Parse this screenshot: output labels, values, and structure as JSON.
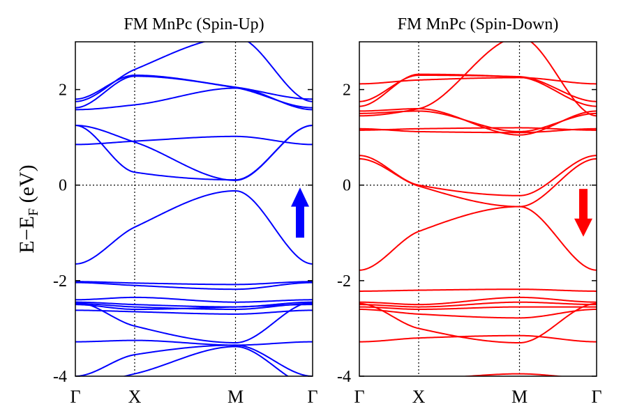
{
  "chart_data": [
    {
      "type": "line",
      "title": "FM MnPc (Spin-Up)",
      "ylabel": "E−E",
      "ylabel_sub": "F",
      "ylabel_unit": "(eV)",
      "ylim": [
        -4,
        3
      ],
      "yticks": [
        -4,
        -2,
        0,
        2
      ],
      "ytick_labels": [
        "-4",
        "-2",
        "0",
        "2"
      ],
      "x_kpoints": [
        0,
        1,
        2.7,
        4
      ],
      "x_labels": [
        "Γ",
        "X",
        "M",
        "Γ"
      ],
      "grid": "dotted lines at X, M and E=0",
      "color": "#0000ff",
      "arrow": "up",
      "series": [
        {
          "x": [
            0,
            1,
            2.7,
            4
          ],
          "y": [
            -1.65,
            -0.88,
            -0.12,
            -1.65
          ]
        },
        {
          "x": [
            0,
            1,
            2.7,
            4
          ],
          "y": [
            0.85,
            0.92,
            1.02,
            0.85
          ]
        },
        {
          "x": [
            0,
            1,
            2.7,
            4
          ],
          "y": [
            1.25,
            0.9,
            0.1,
            1.25
          ]
        },
        {
          "x": [
            0,
            1,
            2.7,
            4
          ],
          "y": [
            1.25,
            0.27,
            0.11,
            1.25
          ]
        },
        {
          "x": [
            0,
            1,
            2.7,
            4
          ],
          "y": [
            1.58,
            1.68,
            2.03,
            1.58
          ]
        },
        {
          "x": [
            0,
            1,
            2.7,
            4
          ],
          "y": [
            1.62,
            2.28,
            2.04,
            1.62
          ]
        },
        {
          "x": [
            0,
            1,
            2.7,
            4
          ],
          "y": [
            1.75,
            2.42,
            3.1,
            1.75
          ]
        },
        {
          "x": [
            0,
            1,
            2.7,
            4
          ],
          "y": [
            1.8,
            2.3,
            2.05,
            1.8
          ]
        },
        {
          "x": [
            0,
            1,
            2.7,
            4
          ],
          "y": [
            -2.02,
            -2.05,
            -2.08,
            -2.02
          ]
        },
        {
          "x": [
            0,
            1,
            2.7,
            4
          ],
          "y": [
            -2.04,
            -2.1,
            -2.18,
            -2.04
          ]
        },
        {
          "x": [
            0,
            1,
            2.7,
            4
          ],
          "y": [
            -2.4,
            -2.35,
            -2.45,
            -2.4
          ]
        },
        {
          "x": [
            0,
            1,
            2.7,
            4
          ],
          "y": [
            -2.45,
            -2.5,
            -2.55,
            -2.45
          ]
        },
        {
          "x": [
            0,
            1,
            2.7,
            4
          ],
          "y": [
            -2.48,
            -2.55,
            -2.6,
            -2.48
          ]
        },
        {
          "x": [
            0,
            1,
            2.7,
            4
          ],
          "y": [
            -2.5,
            -2.6,
            -2.55,
            -2.5
          ]
        },
        {
          "x": [
            0,
            1,
            2.7,
            4
          ],
          "y": [
            -2.62,
            -2.65,
            -2.7,
            -2.62
          ]
        },
        {
          "x": [
            0,
            1,
            2.7,
            4
          ],
          "y": [
            -2.45,
            -2.95,
            -3.3,
            -2.45
          ]
        },
        {
          "x": [
            0,
            1,
            2.7,
            4
          ],
          "y": [
            -3.28,
            -3.25,
            -3.35,
            -3.28
          ]
        },
        {
          "x": [
            0,
            1,
            2.7,
            4
          ],
          "y": [
            -4.0,
            -3.55,
            -3.35,
            -4.0
          ]
        },
        {
          "x": [
            0,
            1,
            2.7,
            4
          ],
          "y": [
            -4.2,
            -3.95,
            -3.38,
            -4.2
          ]
        }
      ]
    },
    {
      "type": "line",
      "title": "FM MnPc (Spin-Down)",
      "ylim": [
        -4,
        3
      ],
      "yticks": [
        -4,
        -2,
        0,
        2
      ],
      "ytick_labels": [
        "-4",
        "-2",
        "0",
        "2"
      ],
      "x_kpoints": [
        0,
        1,
        2.7,
        4
      ],
      "x_labels": [
        "Γ",
        "X",
        "M",
        "Γ"
      ],
      "grid": "dotted lines at X, M and E=0",
      "color": "#ff0000",
      "arrow": "down",
      "series": [
        {
          "x": [
            0,
            1,
            2.7,
            4
          ],
          "y": [
            -1.78,
            -0.97,
            -0.45,
            -1.78
          ]
        },
        {
          "x": [
            0,
            1,
            2.7,
            4
          ],
          "y": [
            0.55,
            -0.02,
            -0.45,
            0.55
          ]
        },
        {
          "x": [
            0,
            1,
            2.7,
            4
          ],
          "y": [
            0.62,
            0.0,
            -0.22,
            0.62
          ]
        },
        {
          "x": [
            0,
            1,
            2.7,
            4
          ],
          "y": [
            1.15,
            1.18,
            1.2,
            1.15
          ]
        },
        {
          "x": [
            0,
            1,
            2.7,
            4
          ],
          "y": [
            1.18,
            1.12,
            1.1,
            1.18
          ]
        },
        {
          "x": [
            0,
            1,
            2.7,
            4
          ],
          "y": [
            1.5,
            1.55,
            1.12,
            1.5
          ]
        },
        {
          "x": [
            0,
            1,
            2.7,
            4
          ],
          "y": [
            1.55,
            1.6,
            1.05,
            1.55
          ]
        },
        {
          "x": [
            0,
            1,
            2.7,
            4
          ],
          "y": [
            1.65,
            2.32,
            2.26,
            1.65
          ]
        },
        {
          "x": [
            0,
            1,
            2.7,
            4
          ],
          "y": [
            1.75,
            2.3,
            2.27,
            1.75
          ]
        },
        {
          "x": [
            0,
            1,
            2.7,
            4
          ],
          "y": [
            2.12,
            2.2,
            2.25,
            2.12
          ]
        },
        {
          "x": [
            0,
            1,
            2.7,
            4
          ],
          "y": [
            1.45,
            1.6,
            3.1,
            1.45
          ]
        },
        {
          "x": [
            0,
            1,
            2.7,
            4
          ],
          "y": [
            -2.22,
            -2.2,
            -2.18,
            -2.22
          ]
        },
        {
          "x": [
            0,
            1,
            2.7,
            4
          ],
          "y": [
            -2.45,
            -2.5,
            -2.35,
            -2.45
          ]
        },
        {
          "x": [
            0,
            1,
            2.7,
            4
          ],
          "y": [
            -2.5,
            -2.55,
            -2.45,
            -2.5
          ]
        },
        {
          "x": [
            0,
            1,
            2.7,
            4
          ],
          "y": [
            -2.55,
            -2.6,
            -2.55,
            -2.55
          ]
        },
        {
          "x": [
            0,
            1,
            2.7,
            4
          ],
          "y": [
            -2.6,
            -2.7,
            -2.78,
            -2.6
          ]
        },
        {
          "x": [
            0,
            1,
            2.7,
            4
          ],
          "y": [
            -2.48,
            -3.0,
            -3.3,
            -2.48
          ]
        },
        {
          "x": [
            0,
            1,
            2.7,
            4
          ],
          "y": [
            -3.28,
            -3.2,
            -3.15,
            -3.28
          ]
        },
        {
          "x": [
            0,
            1,
            2.7,
            4
          ],
          "y": [
            -4.05,
            -4.05,
            -3.95,
            -4.05
          ]
        }
      ]
    }
  ]
}
